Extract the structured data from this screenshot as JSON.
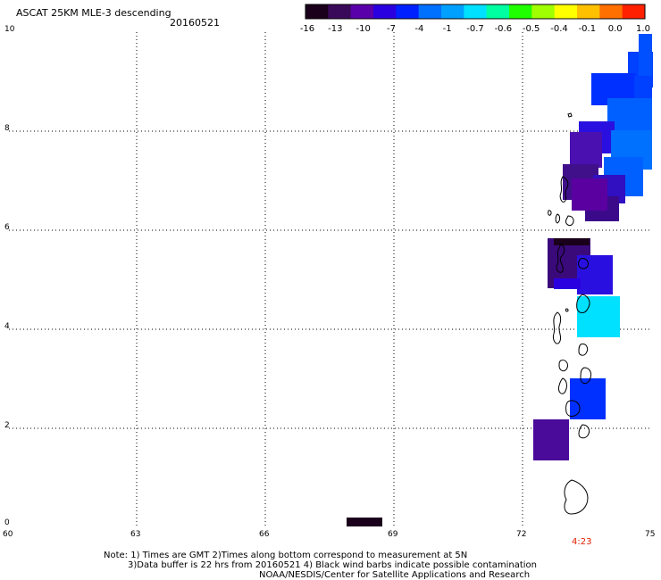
{
  "title": "ASCAT 25KM MLE-3 descending",
  "date": "20160521",
  "legend": {
    "labels": [
      "-16",
      "-13",
      "-10",
      "-7",
      "-4",
      "-1",
      "-0.7",
      "-0.6",
      "-0.5",
      "-0.4",
      "-0.1",
      "0.0",
      "1.0"
    ],
    "colors": [
      "#1a001a",
      "#3a0a5a",
      "#5a00aa",
      "#2a00e0",
      "#0020ff",
      "#0070ff",
      "#00a0ff",
      "#00e0ff",
      "#00ffa0",
      "#20ff00",
      "#a0ff00",
      "#ffff00",
      "#ffc000",
      "#ff7000",
      "#ff2000"
    ]
  },
  "axes": {
    "x_ticks": [
      "60",
      "63",
      "66",
      "69",
      "72",
      "75"
    ],
    "y_ticks": [
      "10",
      "8",
      "6",
      "4",
      "2",
      "0"
    ]
  },
  "time_label": "4:23",
  "notes": {
    "line1": "Note: 1) Times are GMT 2)Times along bottom correspond to measurement at 5N",
    "line2": "3)Data buffer is 22 hrs from 20160521 4) Black wind barbs indicate possible contamination",
    "line3": "NOAA/NESDIS/Center for Satellite Applications and Research"
  }
}
